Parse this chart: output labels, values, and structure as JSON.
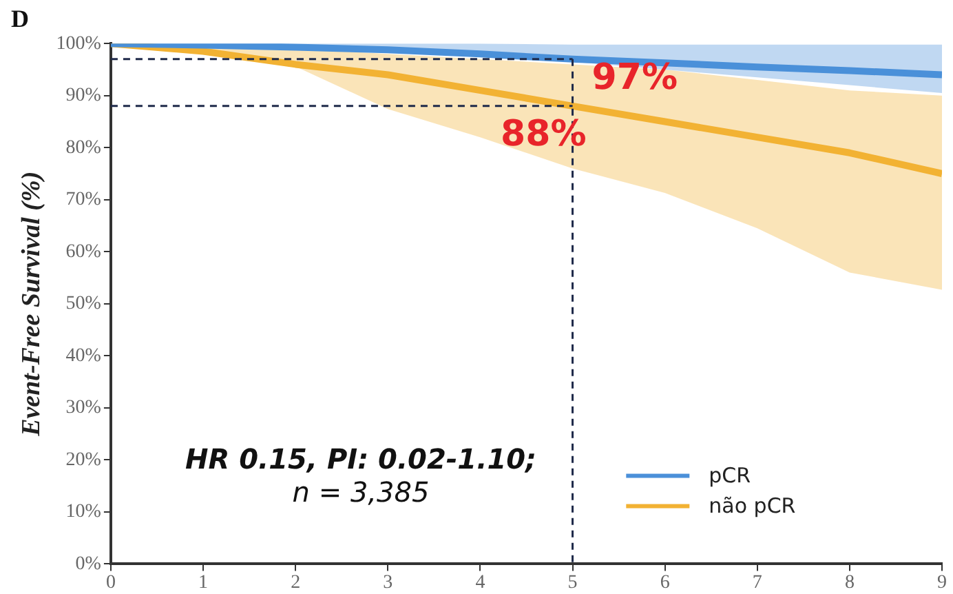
{
  "chart_data": {
    "type": "line",
    "title": "D",
    "ylabel": "Event-Free Survival (%)",
    "x": [
      0,
      1,
      2,
      3,
      4,
      5,
      6,
      7,
      8,
      9
    ],
    "series": [
      {
        "name": "pCR",
        "color": "#4a90d9",
        "values": [
          100,
          99.7,
          99.3,
          98.8,
          98,
          97,
          96.3,
          95.5,
          94.8,
          94
        ],
        "lower": [
          100,
          99.8,
          99,
          98.3,
          97.5,
          96.5,
          95,
          93.5,
          92,
          90.5
        ],
        "upper": [
          100,
          100,
          100,
          100,
          100,
          99.8,
          99.8,
          99.8,
          99.8,
          99.8
        ]
      },
      {
        "name": "não pCR",
        "color": "#f2b233",
        "values": [
          100,
          98.5,
          96,
          94,
          91,
          88,
          85,
          82,
          79,
          75
        ],
        "lower": [
          100,
          98,
          95.6,
          87.4,
          82,
          76,
          71.3,
          64.5,
          56,
          52.7
        ],
        "upper": [
          100,
          99.8,
          99,
          98,
          97,
          96,
          95,
          93,
          91,
          90
        ]
      }
    ],
    "xlim": [
      0,
      9
    ],
    "xticks": [
      0,
      1,
      2,
      3,
      4,
      5,
      6,
      7,
      8,
      9
    ],
    "ylim": [
      0,
      100
    ],
    "yticks": [
      {
        "value": 0,
        "label": "0%"
      },
      {
        "value": 10,
        "label": "10%"
      },
      {
        "value": 20,
        "label": "20%"
      },
      {
        "value": 30,
        "label": "30%"
      },
      {
        "value": 40,
        "label": "40%"
      },
      {
        "value": 50,
        "label": "50%"
      },
      {
        "value": 60,
        "label": "60%"
      },
      {
        "value": 70,
        "label": "70%"
      },
      {
        "value": 80,
        "label": "80%"
      },
      {
        "value": 90,
        "label": "90%"
      },
      {
        "value": 100,
        "label": "100%"
      }
    ],
    "ref_lines": [
      {
        "axis": "x",
        "value": 5,
        "color": "#1f2a4a",
        "line_style": "dashed"
      },
      {
        "axis": "y",
        "value": 97,
        "color": "#1f2a4a",
        "line_style": "dashed"
      },
      {
        "axis": "y",
        "value": 88,
        "color": "#1f2a4a",
        "line_style": "dashed"
      }
    ],
    "annotations": [
      {
        "text": "97%",
        "x": 5,
        "y": 97
      },
      {
        "text": "88%",
        "x": 5,
        "y": 88
      },
      "HR 0.15, PI: 0.02-1.10;",
      "n = 3,385"
    ],
    "grid": false,
    "legend": "bottom right",
    "marker": "none",
    "line_style": "solid"
  }
}
